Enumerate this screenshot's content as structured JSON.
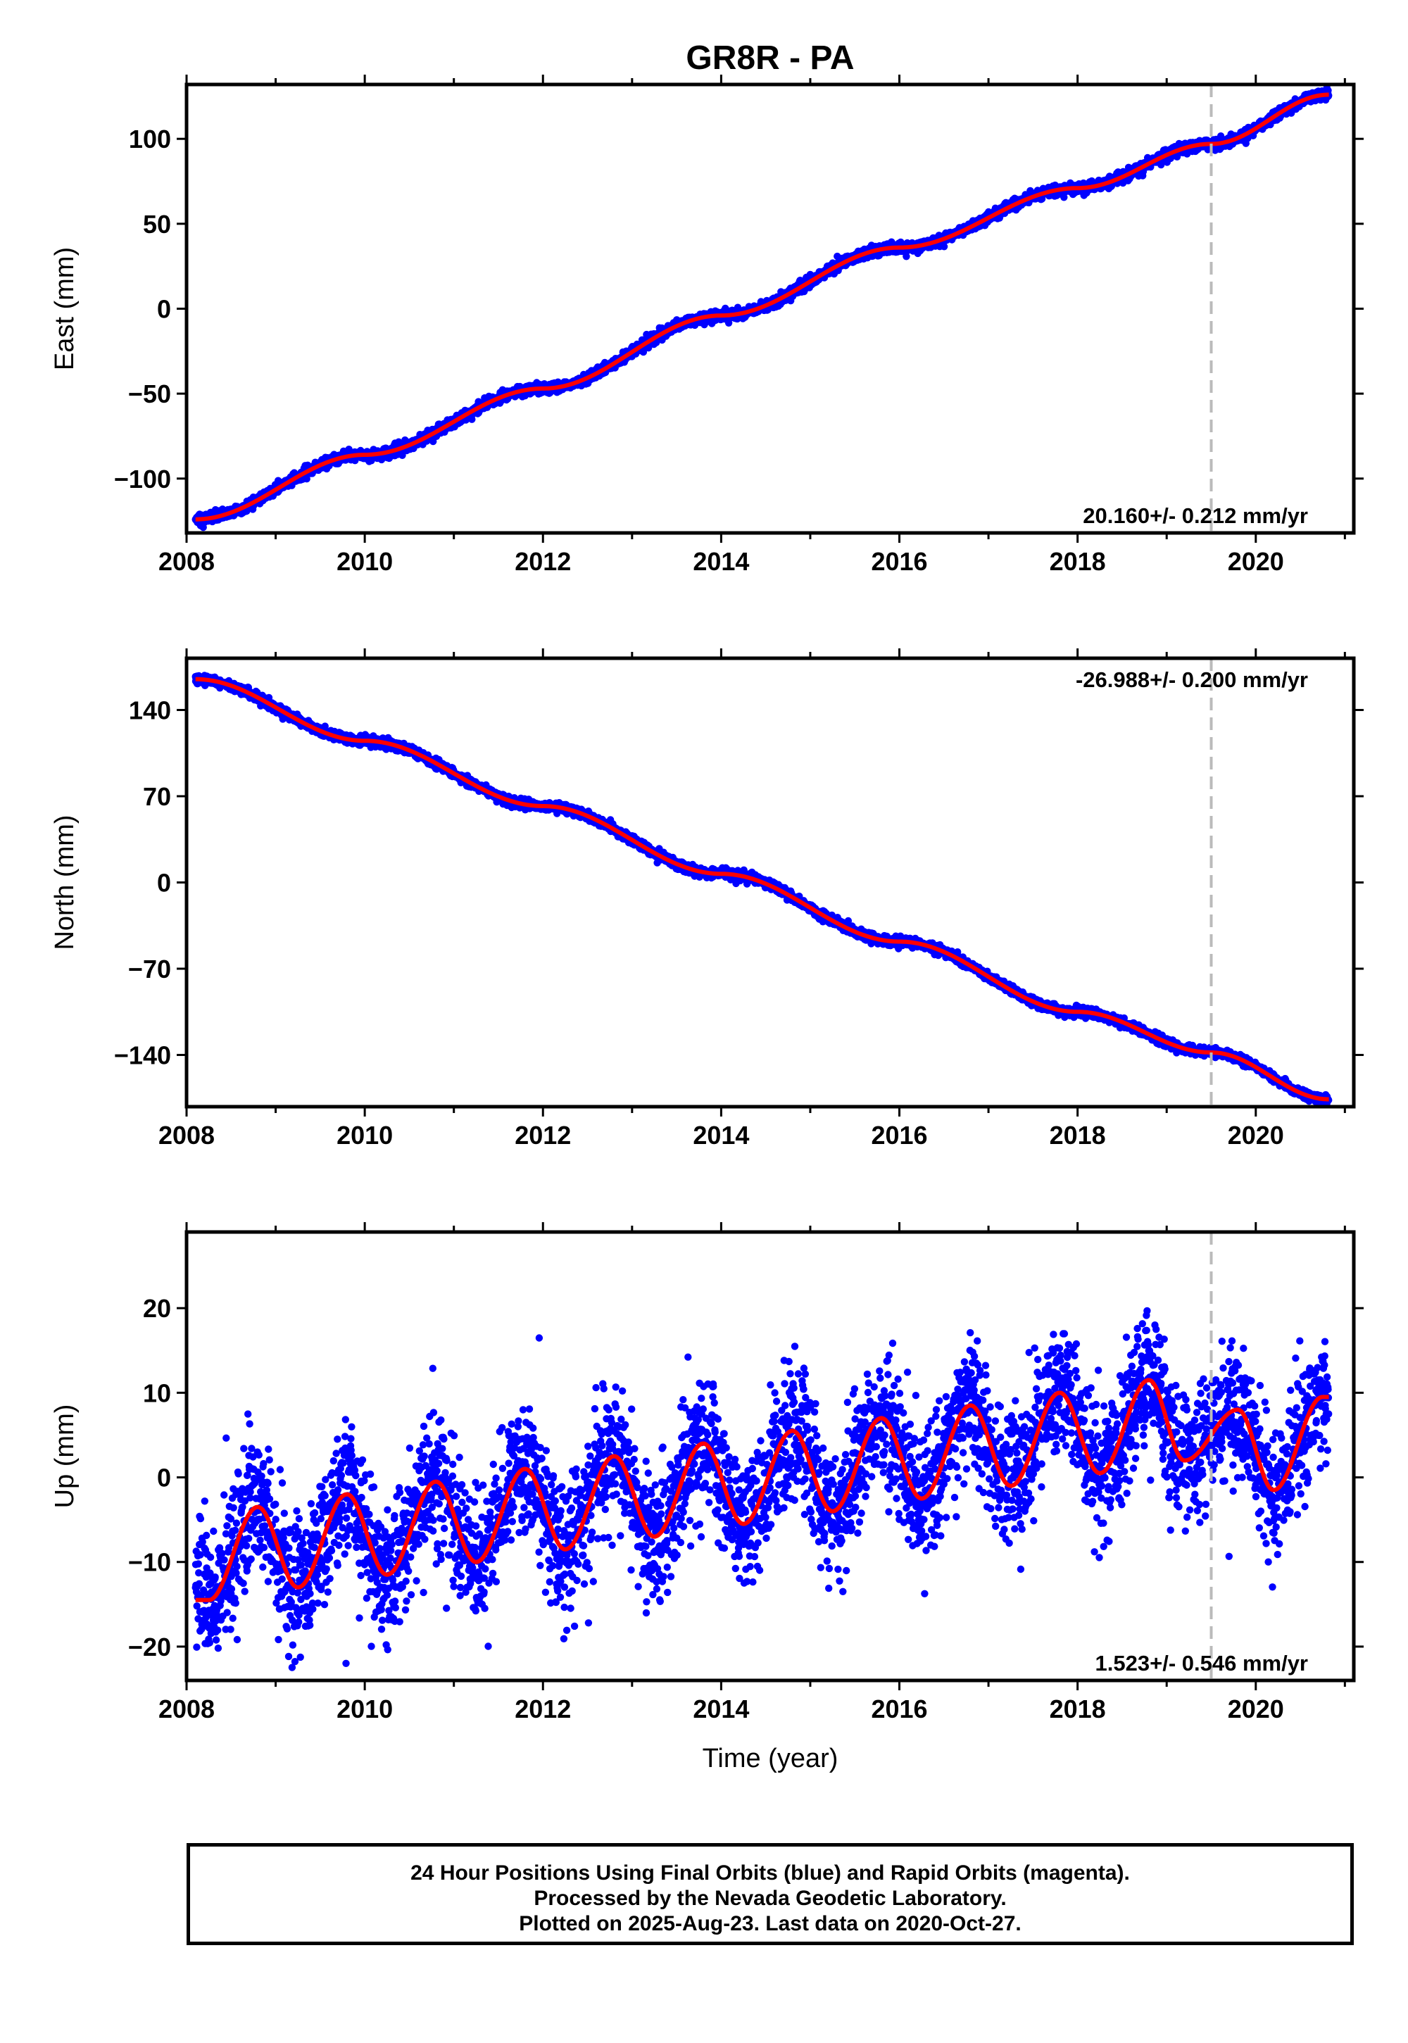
{
  "title": "GR8R - PA",
  "colors": {
    "final_orbits": "#0000ff",
    "model": "#ff0000",
    "step_line": "#bbbbbb",
    "axis": "#000000"
  },
  "footer": {
    "line1": "24 Hour Positions Using Final Orbits (blue) and Rapid Orbits (magenta).",
    "line2": "Processed by the Nevada Geodetic Laboratory.",
    "line3": "Plotted on 2025-Aug-23. Last data on 2020-Oct-27."
  },
  "chart_data": [
    {
      "type": "scatter",
      "name": "east",
      "ylabel": "East (mm)",
      "xlabel": "",
      "xlim": [
        2008.0,
        2021.1
      ],
      "ylim": [
        -132,
        132
      ],
      "xticks": [
        2008,
        2010,
        2012,
        2014,
        2016,
        2018,
        2020
      ],
      "yticks": [
        -100,
        -50,
        0,
        50,
        100
      ],
      "ytick_labels": [
        "−100",
        "−50",
        "0",
        "50",
        "100"
      ],
      "rate_label": "20.160+/- 0.212 mm/yr",
      "rate_position": "bottom-right",
      "step_epoch": 2019.5,
      "data_start": 2008.1,
      "data_end": 2020.82,
      "trend": {
        "t0": 2008.1,
        "y0": -126,
        "rate": 20.16
      },
      "seasonal": {
        "amplitude": 1.5,
        "phase_deg": 30
      },
      "offset_at_step": 2,
      "scatter_sigma": 1.5,
      "model_anchors": [
        [
          2008.1,
          -124
        ],
        [
          2010.0,
          -86
        ],
        [
          2012.0,
          -47
        ],
        [
          2014.0,
          -4
        ],
        [
          2016.0,
          36
        ],
        [
          2018.0,
          71
        ],
        [
          2019.5,
          97
        ],
        [
          2020.82,
          126
        ]
      ]
    },
    {
      "type": "scatter",
      "name": "north",
      "ylabel": "North (mm)",
      "xlabel": "",
      "xlim": [
        2008.0,
        2021.1
      ],
      "ylim": [
        -182,
        182
      ],
      "xticks": [
        2008,
        2010,
        2012,
        2014,
        2016,
        2018,
        2020
      ],
      "yticks": [
        -140,
        -70,
        0,
        70,
        140
      ],
      "ytick_labels": [
        "−140",
        "−70",
        "0",
        "70",
        "140"
      ],
      "rate_label": "-26.988+/- 0.200 mm/yr",
      "rate_position": "top-right",
      "step_epoch": 2019.5,
      "data_start": 2008.1,
      "data_end": 2020.82,
      "trend": {
        "t0": 2008.1,
        "y0": 165,
        "rate": -26.988
      },
      "seasonal": {
        "amplitude": 2.5,
        "phase_deg": 60
      },
      "offset_at_step": -1,
      "scatter_sigma": 1.8,
      "model_anchors": [
        [
          2008.1,
          165
        ],
        [
          2010.0,
          115
        ],
        [
          2012.0,
          62
        ],
        [
          2014.0,
          7
        ],
        [
          2016.0,
          -48
        ],
        [
          2018.0,
          -105
        ],
        [
          2019.5,
          -138
        ],
        [
          2020.82,
          -176
        ]
      ]
    },
    {
      "type": "scatter",
      "name": "up",
      "ylabel": "Up (mm)",
      "xlabel": "Time (year)",
      "xlim": [
        2008.0,
        2021.1
      ],
      "ylim": [
        -24,
        29
      ],
      "xticks": [
        2008,
        2010,
        2012,
        2014,
        2016,
        2018,
        2020
      ],
      "yticks": [
        -20,
        -10,
        0,
        10,
        20
      ],
      "ytick_labels": [
        "−20",
        "−10",
        "0",
        "10",
        "20"
      ],
      "rate_label": "1.523+/- 0.546 mm/yr",
      "rate_position": "bottom-right",
      "step_epoch": 2019.5,
      "data_start": 2008.1,
      "data_end": 2020.82,
      "trend": {
        "t0": 2008.1,
        "y0": -8.5,
        "rate": 1.523
      },
      "seasonal": {
        "amplitude": 6.5,
        "phase_deg": 200
      },
      "offset_at_step": 2,
      "scatter_sigma": 3.8,
      "model_anchors": [
        [
          2008.25,
          -14.5
        ],
        [
          2008.8,
          -3.5
        ],
        [
          2009.25,
          -13
        ],
        [
          2009.8,
          -2
        ],
        [
          2010.25,
          -11.5
        ],
        [
          2010.8,
          -0.5
        ],
        [
          2011.25,
          -10
        ],
        [
          2011.8,
          1
        ],
        [
          2012.25,
          -8.5
        ],
        [
          2012.8,
          2.5
        ],
        [
          2013.25,
          -7
        ],
        [
          2013.8,
          4
        ],
        [
          2014.25,
          -5.5
        ],
        [
          2014.8,
          5.5
        ],
        [
          2015.25,
          -4
        ],
        [
          2015.8,
          7
        ],
        [
          2016.25,
          -2.5
        ],
        [
          2016.8,
          8.5
        ],
        [
          2017.25,
          -1
        ],
        [
          2017.8,
          10
        ],
        [
          2018.25,
          0.5
        ],
        [
          2018.8,
          11.5
        ],
        [
          2019.2,
          2
        ],
        [
          2019.8,
          8
        ],
        [
          2020.2,
          -1.5
        ],
        [
          2020.75,
          9.5
        ]
      ]
    }
  ]
}
